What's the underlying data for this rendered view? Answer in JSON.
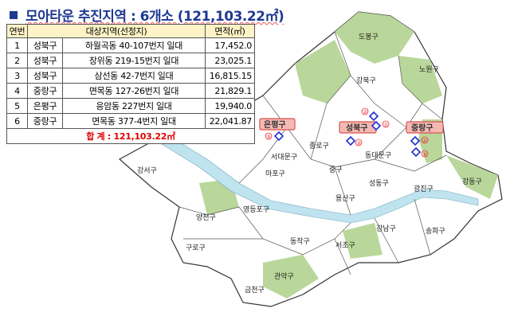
{
  "title": {
    "bullet": "■",
    "text": "모아타운 추진지역 : 6개소 (121,103.22㎡)"
  },
  "table": {
    "headers": [
      "연번",
      "대상지역(선정지)",
      "면적(㎡)"
    ],
    "rows": [
      {
        "no": "1",
        "gu": "성북구",
        "area": "하월곡동 40-107번지 일대",
        "size": "17,452.0"
      },
      {
        "no": "2",
        "gu": "성북구",
        "area": "장위동 219-15번지 일대",
        "size": "23,025.1"
      },
      {
        "no": "3",
        "gu": "성북구",
        "area": "삼선동 42-7번지 일대",
        "size": "16,815.15"
      },
      {
        "no": "4",
        "gu": "중랑구",
        "area": "면목동 127-26번지 일대",
        "size": "21,829.1"
      },
      {
        "no": "5",
        "gu": "은평구",
        "area": "응암동 227번지 일대",
        "size": "19,940.0"
      },
      {
        "no": "6",
        "gu": "중랑구",
        "area": "면목동 377-4번지 일대",
        "size": "22,041.87"
      }
    ],
    "total": "합   계 : 121,103.22㎡"
  },
  "map": {
    "districts": [
      "도봉구",
      "노원구",
      "강북구",
      "종로구",
      "동대문구",
      "서대문구",
      "마포구",
      "중구",
      "성동구",
      "광진구",
      "강동구",
      "강서구",
      "용산구",
      "영등포구",
      "양천구",
      "구로구",
      "동작구",
      "서초구",
      "강남구",
      "송파구",
      "관악구",
      "금천구"
    ],
    "highlighted": [
      "은평구",
      "성북구",
      "중랑구"
    ],
    "markers": [
      "①",
      "②",
      "③",
      "④",
      "⑤",
      "⑥"
    ],
    "colors": {
      "land": "#ffffff",
      "green": "#b9d79a",
      "river": "#bfe3ef",
      "highlight": "#f5b9b3",
      "marker": "#1f2fd6",
      "marker_label": "#e33333"
    }
  }
}
